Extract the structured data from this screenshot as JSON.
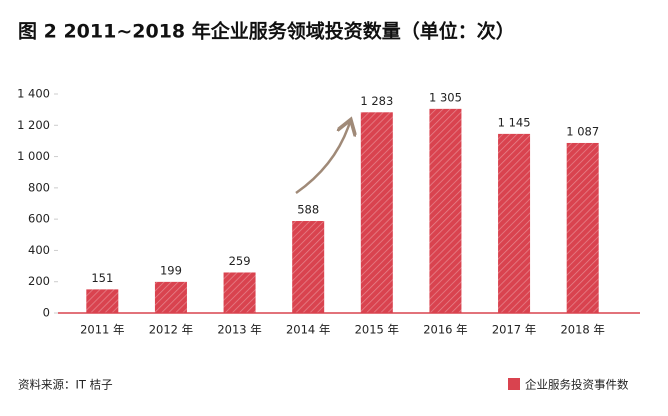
{
  "chart_data": {
    "type": "bar",
    "title": "图 2  2011~2018 年企业服务领域投资数量（单位：次）",
    "categories": [
      "2011 年",
      "2012 年",
      "2013 年",
      "2014 年",
      "2015 年",
      "2016 年",
      "2017 年",
      "2018 年"
    ],
    "series": [
      {
        "name": "企业服务投资事件数",
        "color": "#d9434f",
        "values": [
          151,
          199,
          259,
          588,
          1283,
          1305,
          1145,
          1087
        ],
        "value_labels": [
          "151",
          "199",
          "259",
          "588",
          "1 283",
          "1 305",
          "1 145",
          "1 087"
        ]
      }
    ],
    "ylim": [
      0,
      1400
    ],
    "yticks": [
      0,
      200,
      400,
      600,
      800,
      {
        "value": 1000,
        "label": "1 000"
      },
      {
        "value": 1200,
        "label": "1 200"
      },
      {
        "value": 1400,
        "label": "1 400"
      }
    ],
    "grid": false,
    "legend": "bottom-right",
    "source": "资料来源：IT 桔子"
  }
}
